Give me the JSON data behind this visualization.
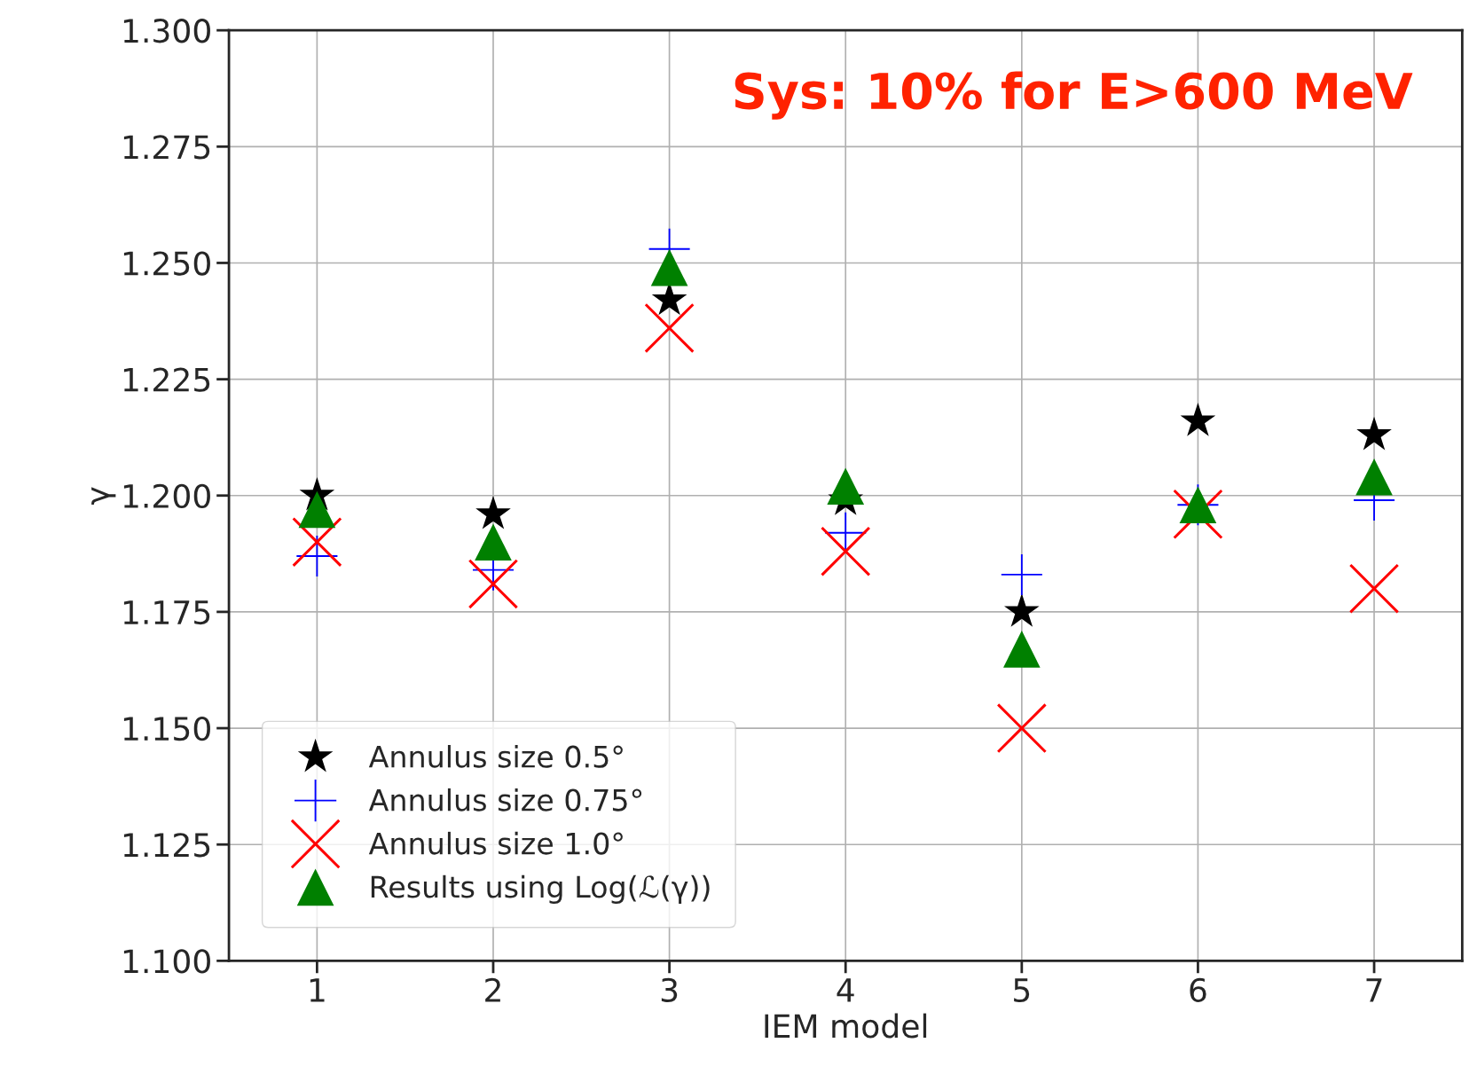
{
  "chart_data": {
    "type": "scatter",
    "xlabel": "IEM model",
    "ylabel": "γ",
    "x": [
      1,
      2,
      3,
      4,
      5,
      6,
      7
    ],
    "series": [
      {
        "name": "Annulus size 0.5°",
        "color": "#000000",
        "marker": "star",
        "values": [
          1.2,
          1.196,
          1.242,
          1.199,
          1.175,
          1.216,
          1.213
        ]
      },
      {
        "name": "Annulus size 0.75°",
        "color": "#0000ff",
        "values": [
          1.187,
          1.184,
          1.253,
          1.192,
          1.183,
          1.198,
          1.199
        ]
      },
      {
        "name": "Annulus size 1.0°",
        "color": "#ff0000",
        "marker": "cross",
        "values": [
          1.19,
          1.181,
          1.236,
          1.188,
          1.15,
          1.196,
          1.18
        ]
      },
      {
        "name": "Results using Log(ℒ(γ))",
        "color": "#008000",
        "marker": "triangle",
        "values": [
          1.197,
          1.19,
          1.249,
          1.202,
          1.167,
          1.198,
          1.204
        ]
      }
    ],
    "xlim": [
      0.5,
      7.5
    ],
    "xticks": [
      1,
      2,
      3,
      4,
      5,
      6,
      7
    ],
    "ylim": [
      1.1,
      1.3
    ],
    "yticks": [
      {
        "value": 1.1,
        "label": "1.100"
      },
      {
        "value": 1.125,
        "label": "1.125"
      },
      {
        "value": 1.15,
        "label": "1.150"
      },
      {
        "value": 1.175,
        "label": "1.175"
      },
      {
        "value": 1.2,
        "label": "1.200"
      },
      {
        "value": 1.225,
        "label": "1.225"
      },
      {
        "value": 1.25,
        "label": "1.250"
      },
      {
        "value": 1.275,
        "label": "1.275"
      },
      {
        "value": 1.3,
        "label": "1.300"
      }
    ],
    "annotations": [
      "Sys: 10% for E>600 MeV"
    ],
    "grid": true,
    "legend": "bottom left"
  }
}
